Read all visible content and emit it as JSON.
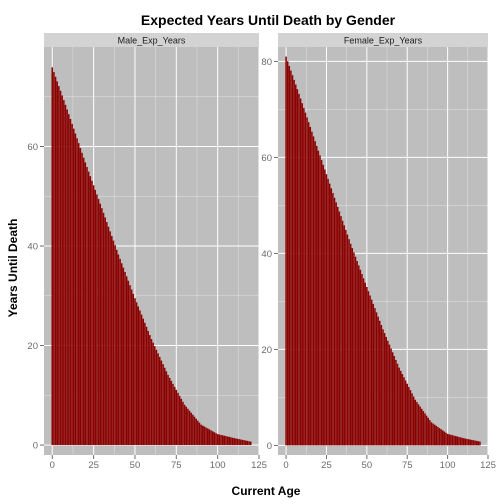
{
  "chart_data": {
    "type": "bar",
    "title": "Expected Years Until Death by Gender",
    "xlabel": "Current Age",
    "ylabel": "Years Until Death",
    "bar_color": "#8b0000",
    "panel_bg": "#bebebe",
    "strip_bg": "#d3d3d3",
    "grid_color": "#ffffff",
    "grid": true,
    "facets": [
      {
        "name": "Male_Exp_Years",
        "xlim": [
          -5,
          125
        ],
        "ylim": [
          -2,
          80
        ],
        "x_ticks": [
          0,
          25,
          50,
          75,
          100,
          125
        ],
        "y_ticks": [
          0,
          20,
          40,
          60
        ],
        "ages": [
          0,
          120
        ],
        "points": [
          [
            0,
            75.9
          ],
          [
            10,
            66.5
          ],
          [
            20,
            56.8
          ],
          [
            30,
            47.6
          ],
          [
            40,
            38.3
          ],
          [
            50,
            29.5
          ],
          [
            60,
            21.3
          ],
          [
            70,
            14.1
          ],
          [
            80,
            8.1
          ],
          [
            90,
            4.1
          ],
          [
            100,
            2.2
          ],
          [
            110,
            1.4
          ],
          [
            120,
            0.7
          ]
        ]
      },
      {
        "name": "Female_Exp_Years",
        "xlim": [
          -5,
          125
        ],
        "ylim": [
          -2,
          83
        ],
        "x_ticks": [
          0,
          25,
          50,
          75,
          100,
          125
        ],
        "y_ticks": [
          0,
          20,
          40,
          60,
          80
        ],
        "ages": [
          0,
          120
        ],
        "points": [
          [
            0,
            81.0
          ],
          [
            10,
            71.3
          ],
          [
            20,
            61.4
          ],
          [
            30,
            51.6
          ],
          [
            40,
            42.0
          ],
          [
            50,
            33.0
          ],
          [
            60,
            24.2
          ],
          [
            70,
            16.2
          ],
          [
            80,
            9.5
          ],
          [
            90,
            4.8
          ],
          [
            100,
            2.4
          ],
          [
            110,
            1.5
          ],
          [
            120,
            0.8
          ]
        ]
      }
    ]
  }
}
